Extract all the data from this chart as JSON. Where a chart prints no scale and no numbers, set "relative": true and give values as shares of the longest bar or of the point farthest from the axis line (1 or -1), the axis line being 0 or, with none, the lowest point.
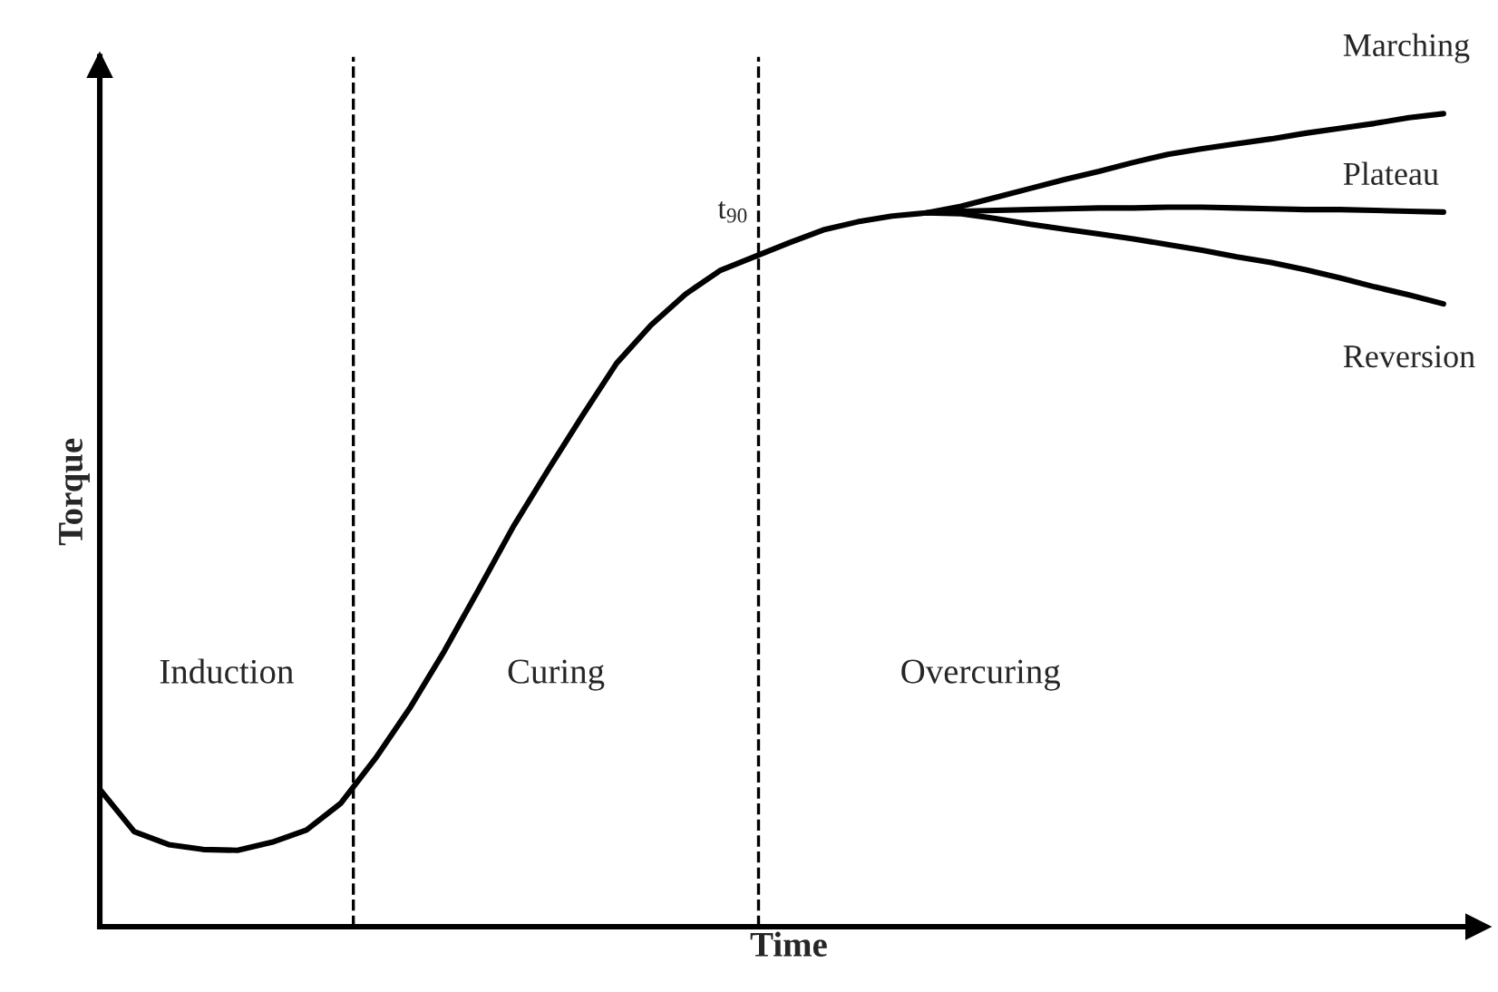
{
  "chart_data": {
    "type": "line",
    "relative": true,
    "xlabel": "Time",
    "ylabel": "Torque",
    "marker": "none",
    "line_style": "solid",
    "categories": [
      null,
      null,
      null,
      null,
      null,
      null,
      null,
      null,
      null,
      null,
      null,
      null,
      null,
      null,
      null,
      null,
      null,
      null,
      null,
      null,
      null,
      null,
      null,
      null,
      null,
      null,
      null,
      null,
      null,
      null,
      null,
      null,
      null,
      null,
      null,
      null,
      null,
      null,
      null,
      null
    ],
    "series": [
      {
        "name": "Marching",
        "color": "#000000",
        "values": [
          null,
          null,
          null,
          null,
          null,
          null,
          null,
          null,
          null,
          null,
          null,
          null,
          null,
          null,
          null,
          null,
          null,
          null,
          null,
          null,
          null,
          null,
          null,
          null,
          0.878,
          0.886,
          0.897,
          0.908,
          0.919,
          0.929,
          0.94,
          0.95,
          0.957,
          0.963,
          0.969,
          0.976,
          0.982,
          0.988,
          0.995,
          1.0
        ]
      },
      {
        "name": "Plateau",
        "color": "#000000",
        "values": [
          0.169,
          0.117,
          0.101,
          0.095,
          0.094,
          0.104,
          0.119,
          0.152,
          0.207,
          0.269,
          0.339,
          0.415,
          0.492,
          0.561,
          0.628,
          0.693,
          0.74,
          0.778,
          0.807,
          0.824,
          0.841,
          0.857,
          0.867,
          0.874,
          0.878,
          0.88,
          0.881,
          0.882,
          0.883,
          0.884,
          0.884,
          0.885,
          0.885,
          0.884,
          0.883,
          0.882,
          0.882,
          0.881,
          0.88,
          0.879
        ]
      },
      {
        "name": "Reversion",
        "color": "#000000",
        "values": [
          null,
          null,
          null,
          null,
          null,
          null,
          null,
          null,
          null,
          null,
          null,
          null,
          null,
          null,
          null,
          null,
          null,
          null,
          null,
          null,
          null,
          null,
          null,
          null,
          0.878,
          0.877,
          0.871,
          0.864,
          0.858,
          0.852,
          0.846,
          0.839,
          0.832,
          0.824,
          0.817,
          0.808,
          0.798,
          0.787,
          0.777,
          0.766
        ]
      }
    ],
    "annotations": [
      "Induction",
      "Curing",
      "Overcuring",
      "t$_{90}$"
    ]
  }
}
